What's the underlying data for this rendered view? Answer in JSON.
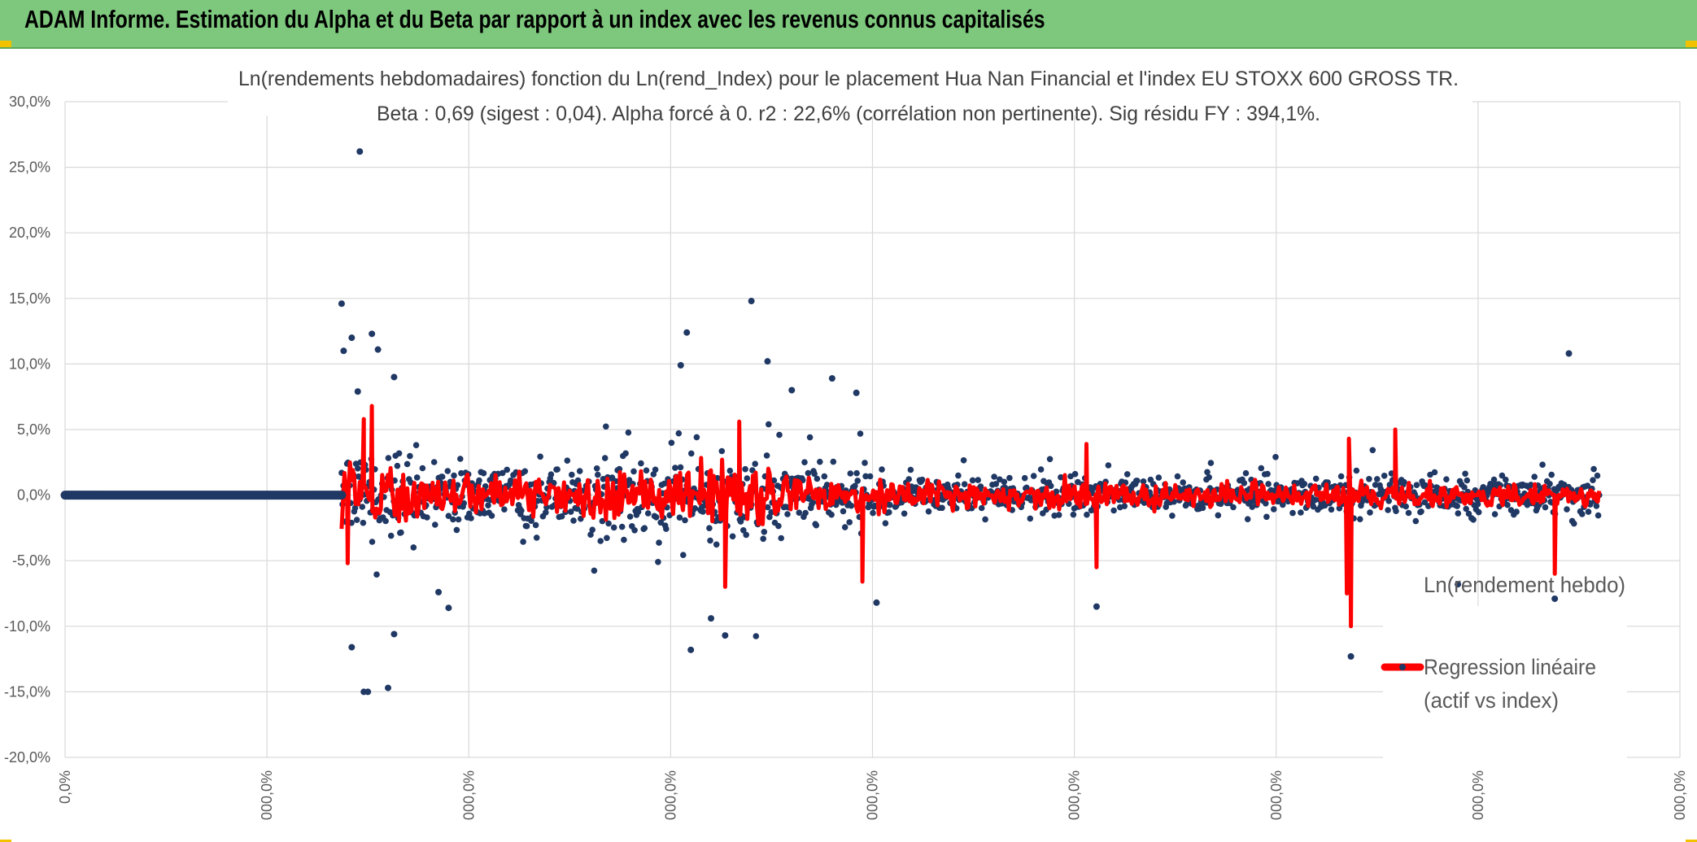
{
  "page_title": "ADAM Informe. Estimation du Alpha et du Beta par rapport à un index avec les revenus connus capitalisés",
  "colors": {
    "banner_bg": "#7dc87d",
    "series_points": "#203864",
    "regression_line": "#ff0000",
    "gridline": "#d9d9d9",
    "axis_text": "#595959"
  },
  "chart_data": {
    "type": "scatter",
    "title_line1": "Ln(rendements hebdomadaires) fonction du Ln(rend_Index) pour le placement Hua Nan Financial  et l'index EU STOXX 600 GROSS TR.",
    "title_line2": "Beta : 0,69 (sigest : 0,04). Alpha forcé à 0. r2 : 22,6% (corrélation non pertinente). Sig résidu FY : 394,1%.",
    "ylim": [
      -20,
      30
    ],
    "y_ticks": [
      "30,0%",
      "25,0%",
      "20,0%",
      "15,0%",
      "10,0%",
      "5,0%",
      "0,0%",
      "-5,0%",
      "-10,0%",
      "-15,0%",
      "-20,0%"
    ],
    "x_ticks": [
      "0,0%",
      "000,0%",
      "000,0%",
      "000,0%",
      "000,0%",
      "000,0%",
      "000,0%",
      "000,0%",
      "000,0%"
    ],
    "x_range": [
      0,
      8
    ],
    "series": [
      {
        "name": "Ln(rendement hebdo)",
        "kind": "points",
        "zero_segment_x": [
          0,
          1.37
        ],
        "active_x_range": [
          1.37,
          7.6
        ],
        "notable_points": [
          {
            "x": 1.46,
            "y": 26.2
          },
          {
            "x": 1.37,
            "y": 14.6
          },
          {
            "x": 1.38,
            "y": 11.0
          },
          {
            "x": 1.42,
            "y": 12.0
          },
          {
            "x": 1.52,
            "y": 12.3
          },
          {
            "x": 1.55,
            "y": 11.1
          },
          {
            "x": 1.63,
            "y": 9.0
          },
          {
            "x": 1.45,
            "y": 7.9
          },
          {
            "x": 3.08,
            "y": 12.4
          },
          {
            "x": 3.05,
            "y": 9.9
          },
          {
            "x": 3.4,
            "y": 14.8
          },
          {
            "x": 3.48,
            "y": 10.2
          },
          {
            "x": 3.6,
            "y": 8.0
          },
          {
            "x": 3.8,
            "y": 8.9
          },
          {
            "x": 3.92,
            "y": 7.8
          },
          {
            "x": 7.45,
            "y": 10.8
          },
          {
            "x": 1.42,
            "y": -11.6
          },
          {
            "x": 1.48,
            "y": -15.0
          },
          {
            "x": 1.5,
            "y": -15.0
          },
          {
            "x": 1.6,
            "y": -14.7
          },
          {
            "x": 1.63,
            "y": -10.6
          },
          {
            "x": 1.9,
            "y": -8.6
          },
          {
            "x": 1.85,
            "y": -7.4
          },
          {
            "x": 3.1,
            "y": -11.8
          },
          {
            "x": 3.2,
            "y": -9.4
          },
          {
            "x": 3.27,
            "y": -10.7
          },
          {
            "x": 4.02,
            "y": -8.2
          },
          {
            "x": 5.11,
            "y": -8.5
          },
          {
            "x": 6.37,
            "y": -12.3
          },
          {
            "x": 6.9,
            "y": -6.8
          },
          {
            "x": 7.38,
            "y": -7.9
          }
        ]
      },
      {
        "name": "Regression linéaire (actif vs index)",
        "kind": "line",
        "notable_points": [
          {
            "x": 1.52,
            "y": 6.8
          },
          {
            "x": 1.48,
            "y": 5.8
          },
          {
            "x": 3.34,
            "y": 5.6
          },
          {
            "x": 5.06,
            "y": 3.9
          },
          {
            "x": 6.36,
            "y": 4.3
          },
          {
            "x": 6.59,
            "y": 5.0
          },
          {
            "x": 1.4,
            "y": -5.2
          },
          {
            "x": 3.27,
            "y": -7.0
          },
          {
            "x": 3.95,
            "y": -6.6
          },
          {
            "x": 6.37,
            "y": -10.0
          },
          {
            "x": 6.35,
            "y": -7.5
          },
          {
            "x": 5.11,
            "y": -5.5
          },
          {
            "x": 7.38,
            "y": -6.0
          }
        ]
      }
    ],
    "legend": {
      "position": "bottom-right",
      "entries": [
        "Ln(rendement hebdo)",
        "Regression linéaire",
        "(actif vs index)"
      ]
    }
  }
}
